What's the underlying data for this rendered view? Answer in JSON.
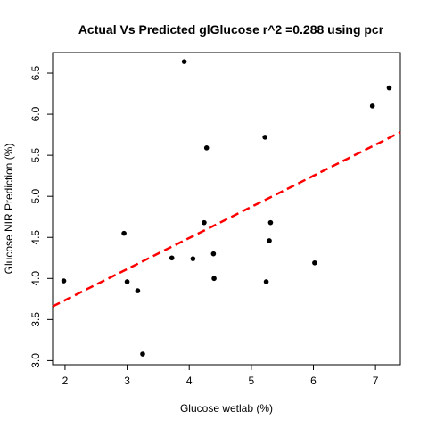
{
  "chart_data": {
    "type": "scatter",
    "title": "Actual Vs Predicted glGlucose r^2 =0.288 using pcr",
    "xlabel": "Glucose wetlab (%)",
    "ylabel": "Glucose NIR Prediction (%)",
    "xlim": [
      1.8,
      7.4
    ],
    "ylim": [
      2.95,
      6.75
    ],
    "xticks": [
      "2",
      "3",
      "4",
      "5",
      "6",
      "7"
    ],
    "yticks": [
      "3.0",
      "3.5",
      "4.0",
      "4.5",
      "5.0",
      "5.5",
      "6.0",
      "6.5"
    ],
    "grid": false,
    "points": [
      {
        "x": 1.98,
        "y": 3.97
      },
      {
        "x": 2.95,
        "y": 4.55
      },
      {
        "x": 3.0,
        "y": 3.96
      },
      {
        "x": 3.17,
        "y": 3.85
      },
      {
        "x": 3.25,
        "y": 3.08
      },
      {
        "x": 3.72,
        "y": 4.25
      },
      {
        "x": 3.92,
        "y": 6.64
      },
      {
        "x": 4.06,
        "y": 4.24
      },
      {
        "x": 4.24,
        "y": 4.68
      },
      {
        "x": 4.28,
        "y": 5.59
      },
      {
        "x": 4.39,
        "y": 4.3
      },
      {
        "x": 4.4,
        "y": 4.0
      },
      {
        "x": 5.22,
        "y": 5.72
      },
      {
        "x": 5.24,
        "y": 3.96
      },
      {
        "x": 5.29,
        "y": 4.46
      },
      {
        "x": 5.31,
        "y": 4.68
      },
      {
        "x": 6.02,
        "y": 4.19
      },
      {
        "x": 6.95,
        "y": 6.1
      },
      {
        "x": 7.22,
        "y": 6.32
      }
    ],
    "fit_line": {
      "x": [
        1.8,
        7.4
      ],
      "y": [
        3.66,
        5.78
      ],
      "color": "#ff0000",
      "style": "dashed"
    },
    "point_color": "#000000"
  }
}
